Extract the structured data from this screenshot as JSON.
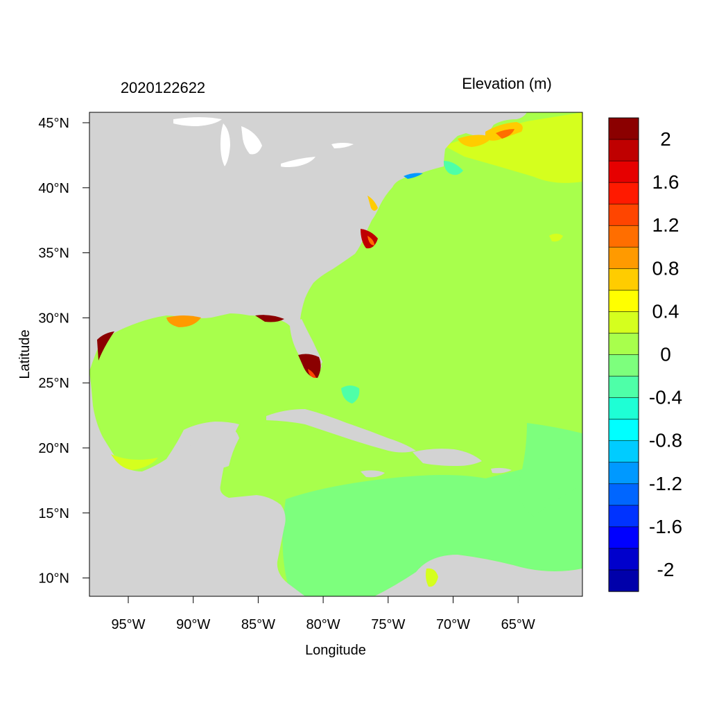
{
  "header": {
    "left_label": "2020122622",
    "right_label": "Elevation (m)"
  },
  "axes": {
    "xlabel": "Longitude",
    "ylabel": "Latitude",
    "lon_ticks": [
      "95°W",
      "90°W",
      "85°W",
      "80°W",
      "75°W",
      "70°W",
      "65°W"
    ],
    "lat_ticks": [
      "45°N",
      "40°N",
      "35°N",
      "30°N",
      "25°N",
      "20°N",
      "15°N",
      "10°N"
    ],
    "lon_range": [
      -98,
      -61
    ],
    "lat_range": [
      8.5,
      46
    ]
  },
  "colorbar": {
    "labels": [
      "2",
      "1.6",
      "1.2",
      "0.8",
      "0.4",
      "0",
      "-0.4",
      "-0.8",
      "-1.2",
      "-1.6",
      "-2"
    ],
    "colors": [
      "#8b0000",
      "#bf0000",
      "#e60000",
      "#ff1a00",
      "#ff4500",
      "#ff6e00",
      "#ff9a00",
      "#ffcc00",
      "#ffff00",
      "#d5ff1e",
      "#a8ff4c",
      "#7dff7d",
      "#4effa8",
      "#1effd5",
      "#00ffff",
      "#00ccff",
      "#0099ff",
      "#0066ff",
      "#0033ff",
      "#0000ff",
      "#0000cc",
      "#0000aa"
    ]
  },
  "map": {
    "land_color": "#d3d3d3",
    "ocean_color": "#a8ff4c",
    "caribbean_color": "#7dff7d"
  }
}
